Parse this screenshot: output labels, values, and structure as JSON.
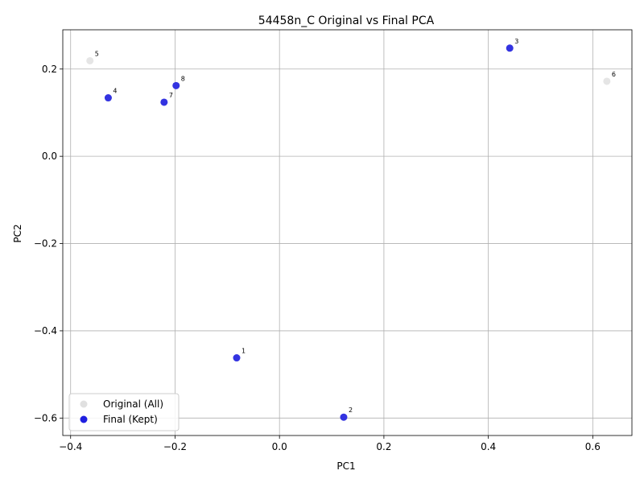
{
  "chart_data": {
    "type": "scatter",
    "title": "54458n_C Original vs Final PCA",
    "xlabel": "PC1",
    "ylabel": "PC2",
    "xlim": [
      -0.415,
      0.675
    ],
    "ylim": [
      -0.64,
      0.29
    ],
    "xticks": [
      -0.4,
      -0.2,
      0.0,
      0.2,
      0.4,
      0.6
    ],
    "xtick_labels": [
      "−0.4",
      "−0.2",
      "0.0",
      "0.2",
      "0.4",
      "0.6"
    ],
    "yticks": [
      -0.6,
      -0.4,
      -0.2,
      0.0,
      0.2
    ],
    "ytick_labels": [
      "−0.6",
      "−0.4",
      "−0.2",
      "0.0",
      "0.2"
    ],
    "grid": true,
    "legend_position": "lower-left",
    "series": [
      {
        "name": "Original (All)",
        "color": "#e0e0e0",
        "points": [
          {
            "label": "1",
            "x": -0.082,
            "y": -0.462
          },
          {
            "label": "2",
            "x": 0.123,
            "y": -0.598
          },
          {
            "label": "3",
            "x": 0.441,
            "y": 0.248
          },
          {
            "label": "4",
            "x": -0.328,
            "y": 0.134
          },
          {
            "label": "5",
            "x": -0.363,
            "y": 0.219
          },
          {
            "label": "6",
            "x": 0.627,
            "y": 0.172
          },
          {
            "label": "7",
            "x": -0.221,
            "y": 0.124
          },
          {
            "label": "8",
            "x": -0.198,
            "y": 0.162
          }
        ]
      },
      {
        "name": "Final (Kept)",
        "color": "#1f1fe0",
        "points": [
          {
            "label": "1",
            "x": -0.082,
            "y": -0.462
          },
          {
            "label": "2",
            "x": 0.123,
            "y": -0.598
          },
          {
            "label": "3",
            "x": 0.441,
            "y": 0.248
          },
          {
            "label": "4",
            "x": -0.328,
            "y": 0.134
          },
          {
            "label": "7",
            "x": -0.221,
            "y": 0.124
          },
          {
            "label": "8",
            "x": -0.198,
            "y": 0.162
          }
        ]
      }
    ]
  }
}
